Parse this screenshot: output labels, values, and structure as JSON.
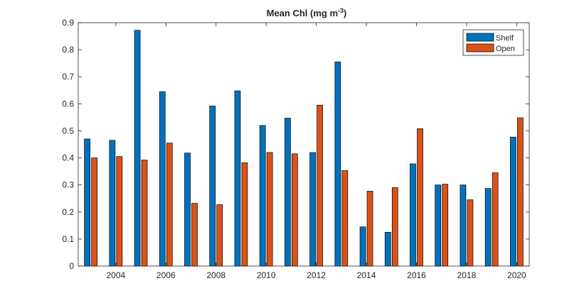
{
  "chart_data": {
    "type": "bar",
    "title": "Mean Chl (mg m",
    "title_superscript": "-3",
    "title_suffix": ")",
    "xlabel": "",
    "ylabel": "",
    "x": [
      2003,
      2004,
      2005,
      2006,
      2007,
      2008,
      2009,
      2010,
      2011,
      2012,
      2013,
      2014,
      2015,
      2016,
      2017,
      2018,
      2019,
      2020
    ],
    "x_ticks": [
      "2004",
      "2006",
      "2008",
      "2010",
      "2012",
      "2014",
      "2016",
      "2018",
      "2020"
    ],
    "y_ticks": [
      "0",
      "0.1",
      "0.2",
      "0.3",
      "0.4",
      "0.5",
      "0.6",
      "0.7",
      "0.8",
      "0.9"
    ],
    "xlim": [
      2002.5,
      2020.5
    ],
    "ylim": [
      0,
      0.9
    ],
    "grid": false,
    "legend": "top-right",
    "series": [
      {
        "name": "Shelf",
        "color": "#0072BD",
        "values": [
          0.47,
          0.465,
          0.872,
          0.645,
          0.418,
          0.592,
          0.648,
          0.52,
          0.547,
          0.42,
          0.755,
          0.145,
          0.125,
          0.378,
          0.3,
          0.3,
          0.287,
          0.477
        ]
      },
      {
        "name": "Open",
        "color": "#D95319",
        "values": [
          0.4,
          0.405,
          0.392,
          0.455,
          0.232,
          0.227,
          0.382,
          0.42,
          0.415,
          0.595,
          0.353,
          0.277,
          0.29,
          0.508,
          0.303,
          0.245,
          0.345,
          0.548
        ]
      }
    ]
  }
}
